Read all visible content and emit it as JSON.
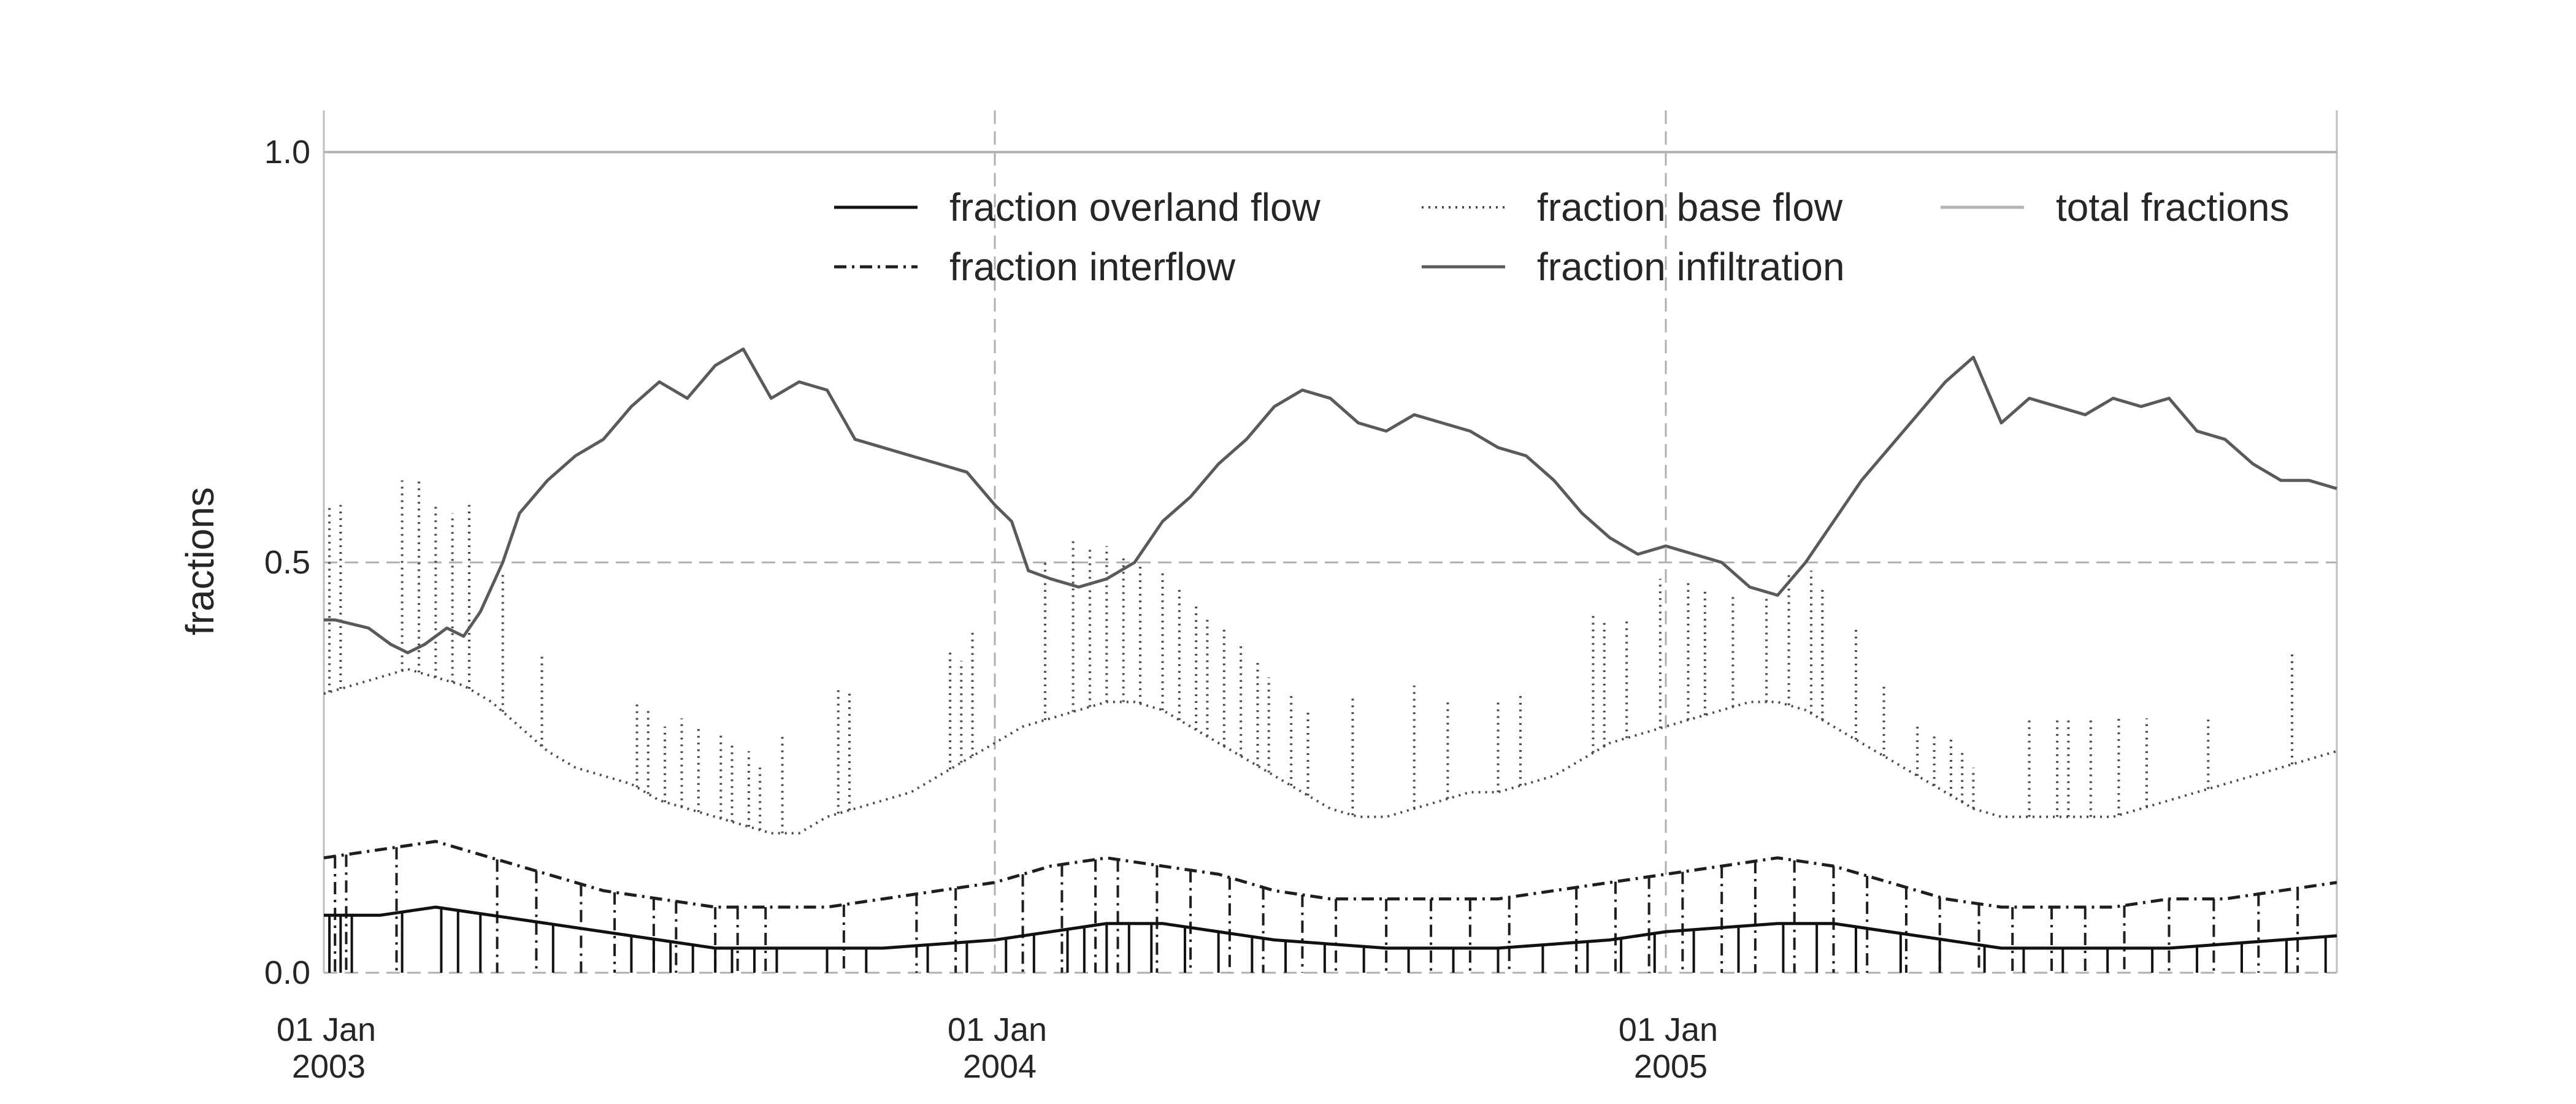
{
  "chart_data": {
    "type": "line",
    "title": "",
    "xlabel": "",
    "ylabel": "fractions",
    "ylim": [
      0.0,
      1.0
    ],
    "xlim": [
      "2003-01-01",
      "2005-12-31"
    ],
    "x_ticks": [
      {
        "date": "2003-01-01",
        "line1": "01 Jan",
        "line2": "2003"
      },
      {
        "date": "2004-01-01",
        "line1": "01 Jan",
        "line2": "2004"
      },
      {
        "date": "2005-01-01",
        "line1": "01 Jan",
        "line2": "2005"
      }
    ],
    "y_ticks": [
      {
        "value": 0.0,
        "label": "0.0"
      },
      {
        "value": 0.5,
        "label": "0.5"
      },
      {
        "value": 1.0,
        "label": "1.0"
      }
    ],
    "grid": true,
    "legend_position": "top-right",
    "legend_order": [
      "overland",
      "interflow",
      "base",
      "infiltration",
      "total"
    ],
    "series": [
      {
        "key": "infiltration",
        "name": "fraction infiltration",
        "style": "solid",
        "color": "#5a5a5a",
        "x_months": [
          0,
          0.2,
          0.8,
          1.2,
          1.5,
          1.8,
          2.2,
          2.5,
          2.8,
          3.2,
          3.5,
          4.0,
          4.5,
          5.0,
          5.5,
          6.0,
          6.5,
          7.0,
          7.5,
          8.0,
          8.5,
          9.0,
          9.5,
          10.0,
          10.5,
          11.0,
          11.5,
          12.0,
          12.3,
          12.6,
          13.0,
          13.5,
          14.0,
          14.5,
          15.0,
          15.5,
          16.0,
          16.5,
          17.0,
          17.5,
          18.0,
          18.5,
          19.0,
          19.5,
          20.0,
          20.5,
          21.0,
          21.5,
          22.0,
          22.5,
          23.0,
          23.5,
          24.0,
          24.5,
          25.0,
          25.5,
          26.0,
          26.5,
          27.0,
          27.5,
          28.0,
          28.5,
          29.0,
          29.5,
          30.0,
          30.5,
          31.0,
          31.5,
          32.0,
          32.5,
          33.0,
          33.5,
          34.0,
          34.5,
          35.0,
          35.5,
          36.0
        ],
        "values": [
          0.43,
          0.43,
          0.42,
          0.4,
          0.39,
          0.4,
          0.42,
          0.41,
          0.44,
          0.5,
          0.56,
          0.6,
          0.63,
          0.65,
          0.69,
          0.72,
          0.7,
          0.74,
          0.76,
          0.7,
          0.72,
          0.71,
          0.65,
          0.64,
          0.63,
          0.62,
          0.61,
          0.57,
          0.55,
          0.49,
          0.48,
          0.47,
          0.48,
          0.5,
          0.55,
          0.58,
          0.62,
          0.65,
          0.69,
          0.71,
          0.7,
          0.67,
          0.66,
          0.68,
          0.67,
          0.66,
          0.64,
          0.63,
          0.6,
          0.56,
          0.53,
          0.51,
          0.52,
          0.51,
          0.5,
          0.47,
          0.46,
          0.5,
          0.55,
          0.6,
          0.64,
          0.68,
          0.72,
          0.75,
          0.67,
          0.7,
          0.69,
          0.68,
          0.7,
          0.69,
          0.7,
          0.66,
          0.65,
          0.62,
          0.6,
          0.6,
          0.59
        ]
      },
      {
        "key": "base",
        "name": "fraction base flow",
        "style": "dotted",
        "color": "#4a4a4a",
        "x_months": [
          0,
          1.0,
          1.5,
          2.0,
          2.5,
          3.0,
          3.5,
          4.0,
          4.5,
          5.0,
          5.5,
          6.0,
          6.5,
          7.0,
          7.5,
          8.0,
          8.5,
          9.0,
          9.5,
          10.0,
          10.5,
          11.0,
          11.5,
          12.0,
          12.5,
          13.0,
          13.5,
          14.0,
          14.5,
          15.0,
          15.5,
          16.0,
          16.5,
          17.0,
          17.5,
          18.0,
          18.5,
          19.0,
          19.5,
          20.0,
          20.5,
          21.0,
          21.5,
          22.0,
          22.5,
          23.0,
          23.5,
          24.0,
          24.5,
          25.0,
          25.5,
          26.0,
          26.5,
          27.0,
          27.5,
          28.0,
          28.5,
          29.0,
          29.5,
          30.0,
          30.5,
          31.0,
          31.5,
          32.0,
          32.5,
          33.0,
          33.5,
          34.0,
          34.5,
          35.0,
          35.5,
          36.0
        ],
        "values": [
          0.34,
          0.36,
          0.37,
          0.36,
          0.35,
          0.33,
          0.3,
          0.27,
          0.25,
          0.24,
          0.23,
          0.21,
          0.2,
          0.19,
          0.18,
          0.17,
          0.17,
          0.19,
          0.2,
          0.21,
          0.22,
          0.24,
          0.26,
          0.28,
          0.3,
          0.31,
          0.32,
          0.33,
          0.33,
          0.32,
          0.3,
          0.28,
          0.26,
          0.24,
          0.22,
          0.2,
          0.19,
          0.19,
          0.2,
          0.21,
          0.22,
          0.22,
          0.23,
          0.24,
          0.26,
          0.28,
          0.29,
          0.3,
          0.31,
          0.32,
          0.33,
          0.33,
          0.32,
          0.3,
          0.28,
          0.26,
          0.24,
          0.22,
          0.2,
          0.19,
          0.19,
          0.19,
          0.19,
          0.19,
          0.2,
          0.21,
          0.22,
          0.23,
          0.24,
          0.25,
          0.26,
          0.27
        ],
        "spikes": [
          {
            "m": 0.1,
            "v": 0.57
          },
          {
            "m": 0.3,
            "v": 0.57
          },
          {
            "m": 1.4,
            "v": 0.6
          },
          {
            "m": 1.7,
            "v": 0.6
          },
          {
            "m": 2.0,
            "v": 0.57
          },
          {
            "m": 2.3,
            "v": 0.56
          },
          {
            "m": 2.6,
            "v": 0.57
          },
          {
            "m": 3.2,
            "v": 0.49
          },
          {
            "m": 3.9,
            "v": 0.39
          },
          {
            "m": 5.6,
            "v": 0.33
          },
          {
            "m": 5.8,
            "v": 0.32
          },
          {
            "m": 6.1,
            "v": 0.3
          },
          {
            "m": 6.4,
            "v": 0.31
          },
          {
            "m": 6.7,
            "v": 0.3
          },
          {
            "m": 7.1,
            "v": 0.29
          },
          {
            "m": 7.3,
            "v": 0.28
          },
          {
            "m": 7.6,
            "v": 0.27
          },
          {
            "m": 7.8,
            "v": 0.25
          },
          {
            "m": 8.2,
            "v": 0.29
          },
          {
            "m": 9.2,
            "v": 0.35
          },
          {
            "m": 9.4,
            "v": 0.34
          },
          {
            "m": 11.2,
            "v": 0.39
          },
          {
            "m": 11.4,
            "v": 0.38
          },
          {
            "m": 11.6,
            "v": 0.42
          },
          {
            "m": 12.9,
            "v": 0.5
          },
          {
            "m": 13.4,
            "v": 0.53
          },
          {
            "m": 13.7,
            "v": 0.52
          },
          {
            "m": 14.0,
            "v": 0.52
          },
          {
            "m": 14.3,
            "v": 0.51
          },
          {
            "m": 14.6,
            "v": 0.5
          },
          {
            "m": 15.0,
            "v": 0.49
          },
          {
            "m": 15.3,
            "v": 0.47
          },
          {
            "m": 15.6,
            "v": 0.45
          },
          {
            "m": 15.8,
            "v": 0.43
          },
          {
            "m": 16.1,
            "v": 0.42
          },
          {
            "m": 16.4,
            "v": 0.4
          },
          {
            "m": 16.7,
            "v": 0.38
          },
          {
            "m": 16.9,
            "v": 0.36
          },
          {
            "m": 17.3,
            "v": 0.34
          },
          {
            "m": 17.6,
            "v": 0.32
          },
          {
            "m": 18.4,
            "v": 0.34
          },
          {
            "m": 19.5,
            "v": 0.35
          },
          {
            "m": 20.1,
            "v": 0.33
          },
          {
            "m": 21.0,
            "v": 0.33
          },
          {
            "m": 21.4,
            "v": 0.34
          },
          {
            "m": 22.7,
            "v": 0.44
          },
          {
            "m": 22.9,
            "v": 0.43
          },
          {
            "m": 23.3,
            "v": 0.43
          },
          {
            "m": 23.9,
            "v": 0.48
          },
          {
            "m": 24.4,
            "v": 0.48
          },
          {
            "m": 24.7,
            "v": 0.47
          },
          {
            "m": 25.2,
            "v": 0.46
          },
          {
            "m": 25.8,
            "v": 0.46
          },
          {
            "m": 26.2,
            "v": 0.49
          },
          {
            "m": 26.6,
            "v": 0.49
          },
          {
            "m": 26.8,
            "v": 0.47
          },
          {
            "m": 27.4,
            "v": 0.42
          },
          {
            "m": 27.9,
            "v": 0.35
          },
          {
            "m": 28.5,
            "v": 0.3
          },
          {
            "m": 28.8,
            "v": 0.29
          },
          {
            "m": 29.1,
            "v": 0.29
          },
          {
            "m": 29.3,
            "v": 0.27
          },
          {
            "m": 29.5,
            "v": 0.25
          },
          {
            "m": 30.5,
            "v": 0.31
          },
          {
            "m": 31.0,
            "v": 0.31
          },
          {
            "m": 31.2,
            "v": 0.31
          },
          {
            "m": 31.6,
            "v": 0.31
          },
          {
            "m": 32.1,
            "v": 0.31
          },
          {
            "m": 32.6,
            "v": 0.31
          },
          {
            "m": 33.7,
            "v": 0.31
          },
          {
            "m": 35.2,
            "v": 0.39
          }
        ]
      },
      {
        "key": "interflow",
        "name": "fraction interflow",
        "style": "dashdot",
        "color": "#1e1e1e",
        "x_months": [
          0,
          1.0,
          2.0,
          3.0,
          4.0,
          5.0,
          6.0,
          7.0,
          8.0,
          9.0,
          10.0,
          11.0,
          12.0,
          13.0,
          14.0,
          15.0,
          16.0,
          17.0,
          18.0,
          19.0,
          20.0,
          21.0,
          22.0,
          23.0,
          24.0,
          25.0,
          26.0,
          27.0,
          28.0,
          29.0,
          30.0,
          31.0,
          32.0,
          33.0,
          34.0,
          35.0,
          36.0
        ],
        "values": [
          0.14,
          0.15,
          0.16,
          0.14,
          0.12,
          0.1,
          0.09,
          0.08,
          0.08,
          0.08,
          0.09,
          0.1,
          0.11,
          0.13,
          0.14,
          0.13,
          0.12,
          0.1,
          0.09,
          0.09,
          0.09,
          0.09,
          0.1,
          0.11,
          0.12,
          0.13,
          0.14,
          0.13,
          0.11,
          0.09,
          0.08,
          0.08,
          0.08,
          0.09,
          0.09,
          0.1,
          0.11
        ],
        "dips": [
          0.2,
          0.4,
          1.3,
          3.1,
          3.8,
          4.6,
          5.2,
          5.9,
          6.3,
          7.0,
          7.4,
          7.9,
          9.3,
          10.6,
          11.3,
          12.5,
          13.2,
          13.8,
          14.2,
          14.9,
          15.5,
          16.2,
          16.8,
          17.5,
          18.1,
          19.0,
          19.8,
          20.5,
          21.2,
          22.4,
          23.1,
          23.7,
          24.3,
          25.0,
          25.6,
          26.3,
          27.0,
          27.6,
          28.3,
          28.9,
          29.6,
          30.2,
          30.9,
          31.5,
          32.2,
          33.0,
          33.8,
          34.6,
          35.3
        ]
      },
      {
        "key": "overland",
        "name": "fraction overland flow",
        "style": "solid",
        "color": "#111111",
        "x_months": [
          0,
          1.0,
          2.0,
          3.0,
          4.0,
          5.0,
          6.0,
          7.0,
          8.0,
          9.0,
          10.0,
          11.0,
          12.0,
          13.0,
          14.0,
          15.0,
          16.0,
          17.0,
          18.0,
          19.0,
          20.0,
          21.0,
          22.0,
          23.0,
          24.0,
          25.0,
          26.0,
          27.0,
          28.0,
          29.0,
          30.0,
          31.0,
          32.0,
          33.0,
          34.0,
          35.0,
          36.0
        ],
        "values": [
          0.07,
          0.07,
          0.08,
          0.07,
          0.06,
          0.05,
          0.04,
          0.03,
          0.03,
          0.03,
          0.03,
          0.035,
          0.04,
          0.05,
          0.06,
          0.06,
          0.05,
          0.04,
          0.035,
          0.03,
          0.03,
          0.03,
          0.035,
          0.04,
          0.05,
          0.055,
          0.06,
          0.06,
          0.05,
          0.04,
          0.03,
          0.03,
          0.03,
          0.03,
          0.035,
          0.04,
          0.045
        ],
        "dips": [
          0.1,
          0.3,
          0.5,
          1.4,
          2.1,
          2.4,
          2.8,
          4.1,
          5.5,
          5.9,
          6.2,
          6.6,
          7.0,
          7.3,
          7.7,
          8.1,
          9.0,
          9.7,
          10.8,
          11.5,
          12.2,
          12.7,
          13.3,
          13.6,
          14.0,
          14.4,
          14.8,
          15.4,
          16.0,
          16.6,
          17.2,
          17.9,
          18.6,
          19.4,
          20.2,
          21.0,
          21.8,
          22.6,
          23.2,
          23.8,
          24.5,
          25.3,
          26.1,
          26.7,
          27.4,
          28.2,
          28.9,
          29.7,
          30.4,
          31.1,
          31.9,
          32.7,
          33.5,
          34.3,
          35.1,
          35.8
        ]
      },
      {
        "key": "total",
        "name": "total fractions",
        "style": "solid",
        "color": "#b4b4b4",
        "x_months": [
          0,
          36
        ],
        "values": [
          1.0,
          1.0
        ]
      }
    ]
  }
}
